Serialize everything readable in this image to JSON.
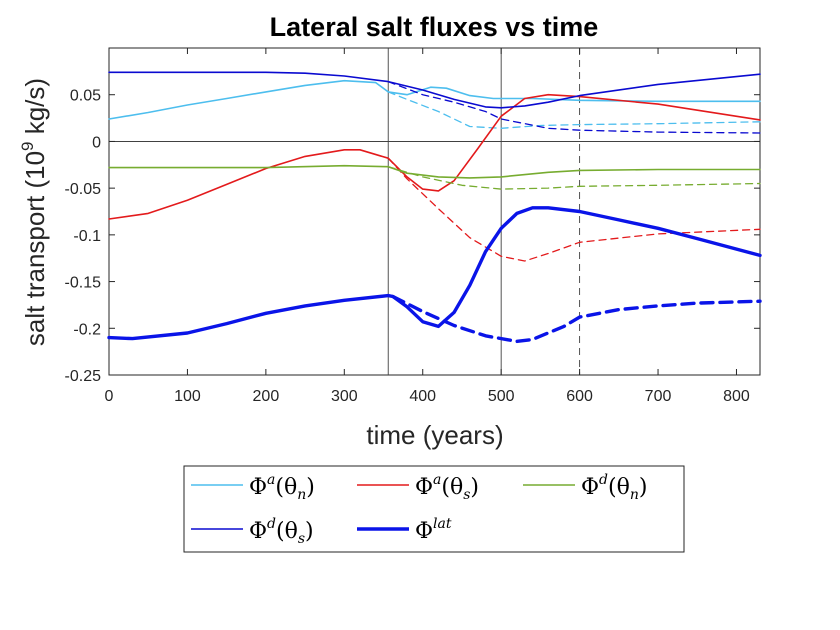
{
  "chart_data": {
    "type": "line",
    "title": "Lateral salt fluxes vs time",
    "xlabel": "time (years)",
    "ylabel": "salt transport (10",
    "ylabel_exp": "9",
    "ylabel_unit": " kg/s)",
    "xlim": [
      0,
      830
    ],
    "ylim": [
      -0.25,
      0.1
    ],
    "xticks": [
      0,
      100,
      200,
      300,
      400,
      500,
      600,
      700,
      800
    ],
    "xtick_labels": [
      "0",
      "100",
      "200",
      "300",
      "400",
      "500",
      "600",
      "700",
      "800"
    ],
    "yticks": [
      0.05,
      0,
      -0.05,
      -0.1,
      -0.15,
      -0.2,
      -0.25
    ],
    "ytick_labels": [
      "0.05",
      "0",
      "-0.05",
      "-0.1",
      "-0.15",
      "-0.2",
      "-0.25"
    ],
    "grid": false,
    "legend_position": "below",
    "vlines": [
      {
        "x": 356,
        "style": "solid"
      },
      {
        "x": 500,
        "style": "solid"
      },
      {
        "x": 600,
        "style": "dashed"
      }
    ],
    "series": [
      {
        "name": "Φa(θn)",
        "color": "#4DBEEE",
        "width": 1.6,
        "style": "solid",
        "x": [
          0,
          50,
          100,
          150,
          200,
          250,
          300,
          340,
          356,
          380,
          410,
          430,
          460,
          490,
          500,
          540,
          600,
          700,
          830
        ],
        "y": [
          0.024,
          0.031,
          0.039,
          0.046,
          0.053,
          0.06,
          0.065,
          0.063,
          0.053,
          0.05,
          0.058,
          0.057,
          0.049,
          0.046,
          0.046,
          0.046,
          0.044,
          0.043,
          0.043
        ]
      },
      {
        "color": "#4DBEEE",
        "width": 1.3,
        "style": "dashed",
        "x": [
          356,
          380,
          420,
          460,
          500,
          550,
          600,
          700,
          830
        ],
        "y": [
          0.053,
          0.045,
          0.032,
          0.016,
          0.014,
          0.017,
          0.018,
          0.019,
          0.021
        ]
      },
      {
        "name": "Φa(θs)",
        "color": "#E31A1C",
        "width": 1.6,
        "style": "solid",
        "x": [
          0,
          50,
          100,
          150,
          200,
          250,
          300,
          320,
          356,
          380,
          400,
          420,
          440,
          470,
          500,
          530,
          560,
          600,
          700,
          830
        ],
        "y": [
          -0.083,
          -0.077,
          -0.063,
          -0.046,
          -0.029,
          -0.016,
          -0.009,
          -0.009,
          -0.018,
          -0.038,
          -0.051,
          -0.053,
          -0.042,
          -0.008,
          0.027,
          0.046,
          0.05,
          0.048,
          0.04,
          0.023
        ]
      },
      {
        "color": "#E31A1C",
        "width": 1.3,
        "style": "dashed",
        "x": [
          356,
          380,
          420,
          460,
          500,
          530,
          560,
          600,
          700,
          830
        ],
        "y": [
          -0.018,
          -0.04,
          -0.072,
          -0.103,
          -0.123,
          -0.128,
          -0.12,
          -0.108,
          -0.099,
          -0.094
        ]
      },
      {
        "name": "Φd(θn)",
        "color": "#77AC30",
        "width": 1.6,
        "style": "solid",
        "x": [
          0,
          100,
          200,
          300,
          356,
          380,
          420,
          460,
          500,
          560,
          600,
          700,
          830
        ],
        "y": [
          -0.028,
          -0.028,
          -0.028,
          -0.026,
          -0.027,
          -0.034,
          -0.038,
          -0.039,
          -0.038,
          -0.033,
          -0.031,
          -0.03,
          -0.03
        ]
      },
      {
        "color": "#77AC30",
        "width": 1.3,
        "style": "dashed",
        "x": [
          356,
          400,
          450,
          500,
          560,
          600,
          700,
          830
        ],
        "y": [
          -0.027,
          -0.038,
          -0.047,
          -0.051,
          -0.05,
          -0.048,
          -0.047,
          -0.045
        ]
      },
      {
        "name": "Φd(θs)",
        "color": "#0A0AD0",
        "width": 1.6,
        "style": "solid",
        "x": [
          0,
          100,
          200,
          250,
          300,
          356,
          400,
          440,
          480,
          500,
          530,
          560,
          600,
          700,
          830
        ],
        "y": [
          0.074,
          0.074,
          0.074,
          0.073,
          0.07,
          0.064,
          0.055,
          0.045,
          0.037,
          0.036,
          0.038,
          0.042,
          0.049,
          0.061,
          0.072
        ]
      },
      {
        "color": "#0A0AD0",
        "width": 1.3,
        "style": "dashed",
        "x": [
          356,
          400,
          440,
          480,
          500,
          560,
          600,
          700,
          830
        ],
        "y": [
          0.064,
          0.05,
          0.042,
          0.032,
          0.024,
          0.014,
          0.012,
          0.01,
          0.009
        ]
      },
      {
        "name": "Φlat",
        "color": "#0A14E8",
        "width": 3.4,
        "style": "solid",
        "x": [
          0,
          30,
          100,
          150,
          200,
          250,
          300,
          356,
          362,
          380,
          400,
          420,
          440,
          460,
          480,
          500,
          520,
          540,
          560,
          600,
          650,
          700,
          750,
          830
        ],
        "y": [
          -0.21,
          -0.211,
          -0.205,
          -0.195,
          -0.184,
          -0.176,
          -0.17,
          -0.165,
          -0.166,
          -0.177,
          -0.193,
          -0.198,
          -0.183,
          -0.154,
          -0.118,
          -0.093,
          -0.077,
          -0.071,
          -0.071,
          -0.075,
          -0.084,
          -0.093,
          -0.104,
          -0.122
        ]
      },
      {
        "color": "#0A14E8",
        "width": 3.4,
        "style": "dashed",
        "x": [
          362,
          400,
          440,
          480,
          520,
          540,
          580,
          600,
          650,
          700,
          750,
          830
        ],
        "y": [
          -0.166,
          -0.182,
          -0.197,
          -0.208,
          -0.214,
          -0.212,
          -0.198,
          -0.188,
          -0.18,
          -0.176,
          -0.173,
          -0.171
        ]
      }
    ],
    "legend": [
      {
        "base": "Φ",
        "sup": "a",
        "arg": "(θ",
        "sub": "n",
        "close": ")",
        "color": "#4DBEEE",
        "width": 1.6
      },
      {
        "base": "Φ",
        "sup": "a",
        "arg": "(θ",
        "sub": "s",
        "close": ")",
        "color": "#E31A1C",
        "width": 1.6
      },
      {
        "base": "Φ",
        "sup": "d",
        "arg": "(θ",
        "sub": "n",
        "close": ")",
        "color": "#77AC30",
        "width": 1.6
      },
      {
        "base": "Φ",
        "sup": "d",
        "arg": "(θ",
        "sub": "s",
        "close": ")",
        "color": "#0A0AD0",
        "width": 1.6
      },
      {
        "base": "Φ",
        "sup": "lat",
        "arg": "",
        "sub": "",
        "close": "",
        "color": "#0A14E8",
        "width": 3.4
      }
    ]
  }
}
